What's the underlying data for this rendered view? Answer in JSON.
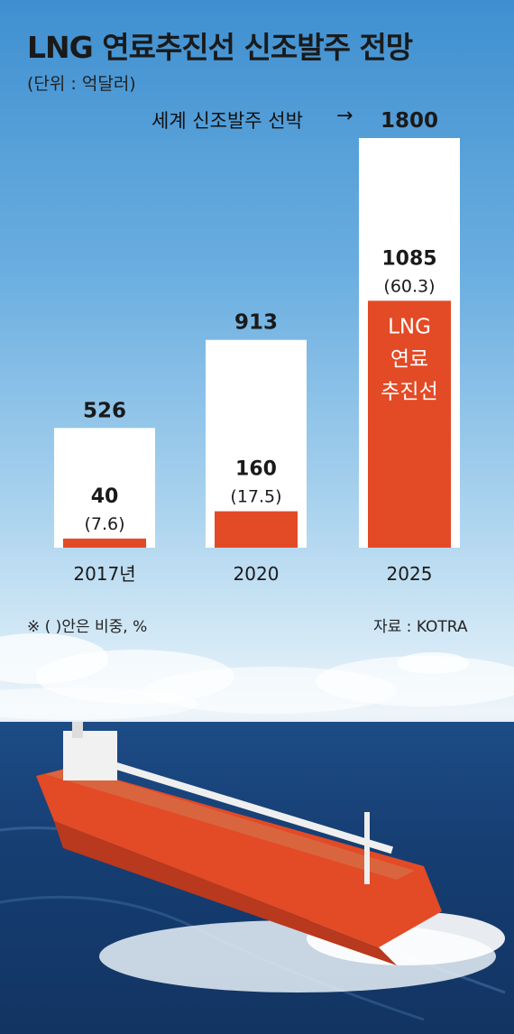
{
  "title": "LNG 연료추진선 신조발주 전망",
  "unit": "(단위 : 억달러)",
  "annotation": "세계 신조발주 선박",
  "arrow": "→",
  "footnote": "※ (    )안은 비중, %",
  "source": "자료 : KOTRA",
  "colors": {
    "total_bar": "#ffffff",
    "lng_bar": "#e34a26",
    "label": "#1a1a1a",
    "inner_label": "#ffffff"
  },
  "chart_data": {
    "type": "bar",
    "categories": [
      "2017년",
      "2020",
      "2025"
    ],
    "series": [
      {
        "values": [
          526,
          913,
          1800
        ]
      },
      {
        "name": "LNG 연료추진선",
        "values": [
          40,
          160,
          1085
        ],
        "share_labels": [
          "(7.6)",
          "(17.5)",
          "(60.3)"
        ]
      }
    ],
    "legend_inside_bar": [
      "LNG",
      "연료",
      "추진선"
    ],
    "ylim": [
      0,
      1800
    ]
  }
}
